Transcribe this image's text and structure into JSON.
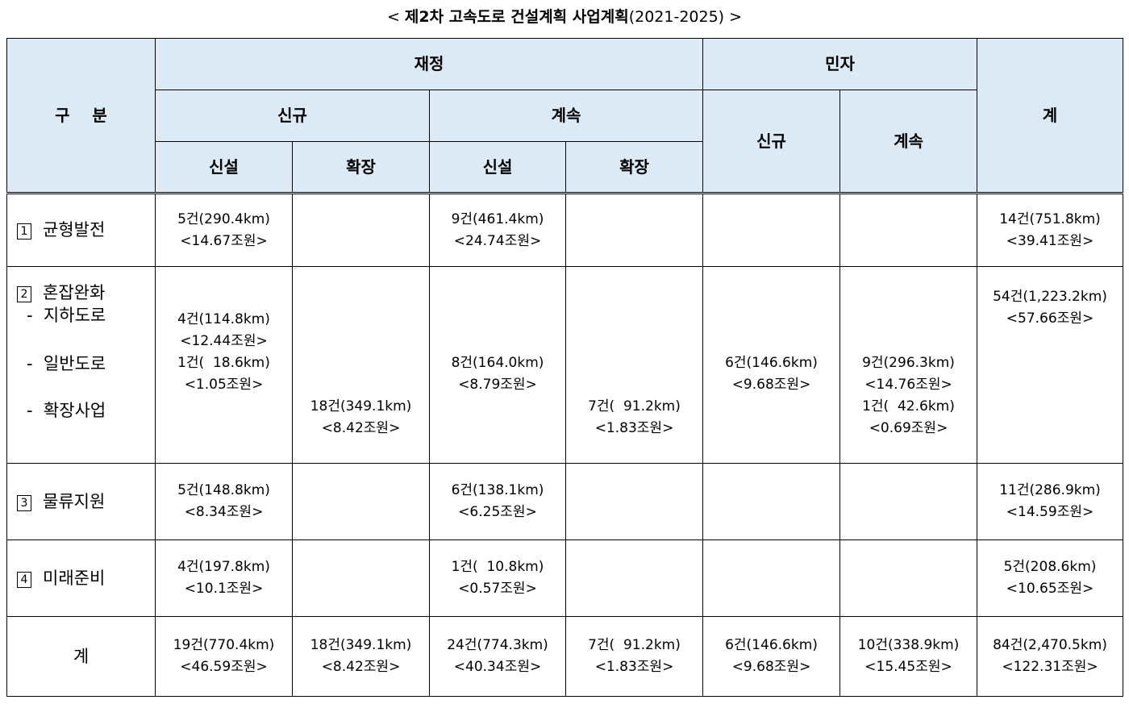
{
  "title": {
    "prefix": "< ",
    "main": "제2차 고속도로 건설계획 사업계획",
    "years": "(2021-2025)",
    "suffix": " >"
  },
  "header": {
    "gubun": "구    분",
    "jaejeong": "재정",
    "minja": "민자",
    "total": "계",
    "singyu": "신규",
    "gyesok": "계속",
    "sinseol": "신설",
    "hwakjang": "확장"
  },
  "rows": {
    "r1": {
      "num": "1",
      "label": "균형발전",
      "c1": [
        "5건(290.4km)",
        "<14.67조원>"
      ],
      "c3": [
        "9건(461.4km)",
        "<24.74조원>"
      ],
      "total": [
        "14건(751.8km)",
        "<39.41조원>"
      ]
    },
    "r2": {
      "num": "2",
      "label": "혼잡완화",
      "subs": [
        "-  지하도로",
        "-  일반도로",
        "-  확장사업"
      ],
      "c1": [
        "4건(114.8km)",
        "<12.44조원>",
        "1건(  18.6km)",
        "<1.05조원>"
      ],
      "c2": [
        "18건(349.1km)",
        "<8.42조원>"
      ],
      "c3": [
        "8건(164.0km)",
        "<8.79조원>"
      ],
      "c4": [
        "7건(  91.2km)",
        "<1.83조원>"
      ],
      "c5": [
        "6건(146.6km)",
        "<9.68조원>"
      ],
      "c6": [
        "9건(296.3km)",
        "<14.76조원>",
        "1건(  42.6km)",
        "<0.69조원>"
      ],
      "total": [
        "54건(1,223.2km)",
        "<57.66조원>"
      ]
    },
    "r3": {
      "num": "3",
      "label": "물류지원",
      "c1": [
        "5건(148.8km)",
        "<8.34조원>"
      ],
      "c3": [
        "6건(138.1km)",
        "<6.25조원>"
      ],
      "total": [
        "11건(286.9km)",
        "<14.59조원>"
      ]
    },
    "r4": {
      "num": "4",
      "label": "미래준비",
      "c1": [
        "4건(197.8km)",
        "<10.1조원>"
      ],
      "c3": [
        "1건(  10.8km)",
        "<0.57조원>"
      ],
      "total": [
        "5건(208.6km)",
        "<10.65조원>"
      ]
    },
    "r5": {
      "label": "계",
      "c1": [
        "19건(770.4km)",
        "<46.59조원>"
      ],
      "c2": [
        "18건(349.1km)",
        "<8.42조원>"
      ],
      "c3": [
        "24건(774.3km)",
        "<40.34조원>"
      ],
      "c4": [
        "7건(  91.2km)",
        "<1.83조원>"
      ],
      "c5": [
        "6건(146.6km)",
        "<9.68조원>"
      ],
      "c6": [
        "10건(338.9km)",
        "<15.45조원>"
      ],
      "total": [
        "84건(2,470.5km)",
        "<122.31조원>"
      ]
    }
  }
}
